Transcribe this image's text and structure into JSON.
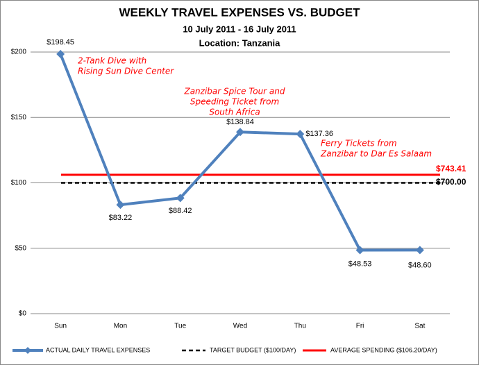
{
  "chart_data": {
    "type": "line",
    "title": "WEEKLY TRAVEL EXPENSES VS. BUDGET",
    "subtitle": [
      "10 July 2011 - 16 July 2011",
      "Location: Tanzania"
    ],
    "categories": [
      "Sun",
      "Mon",
      "Tue",
      "Wed",
      "Thu",
      "Fri",
      "Sat"
    ],
    "series": [
      {
        "name": "ACTUAL DAILY TRAVEL EXPENSES",
        "color": "#4f81bd",
        "values": [
          198.45,
          83.22,
          88.42,
          138.84,
          137.36,
          48.53,
          48.6
        ],
        "value_labels": [
          "$198.45",
          "$83.22",
          "$88.42",
          "$138.84",
          "$137.36",
          "$48.53",
          "$48.60"
        ]
      }
    ],
    "reference_lines": [
      {
        "name": "TARGET BUDGET ($100/DAY)",
        "color": "#000000",
        "dashed": true,
        "value": 100,
        "total": 700,
        "total_label": "$700.00"
      },
      {
        "name": "AVERAGE SPENDING ($106.20/DAY)",
        "color": "#ff0000",
        "dashed": false,
        "value": 106.2,
        "total": 743.41,
        "total_label": "$743.41"
      }
    ],
    "annotations": [
      {
        "lines": [
          "2-Tank Dive with",
          "Rising Sun Dive Center"
        ]
      },
      {
        "lines": [
          "Zanzibar Spice Tour and",
          "Speeding Ticket from",
          "South Africa"
        ]
      },
      {
        "lines": [
          "Ferry Tickets from",
          "Zanzibar to Dar Es Salaam"
        ]
      }
    ],
    "ylim": [
      0,
      200
    ],
    "yticks": [
      {
        "value": 0,
        "label": "$0"
      },
      {
        "value": 50,
        "label": "$50"
      },
      {
        "value": 100,
        "label": "$100"
      },
      {
        "value": 150,
        "label": "$150"
      },
      {
        "value": 200,
        "label": "$200"
      }
    ],
    "grid": true
  }
}
